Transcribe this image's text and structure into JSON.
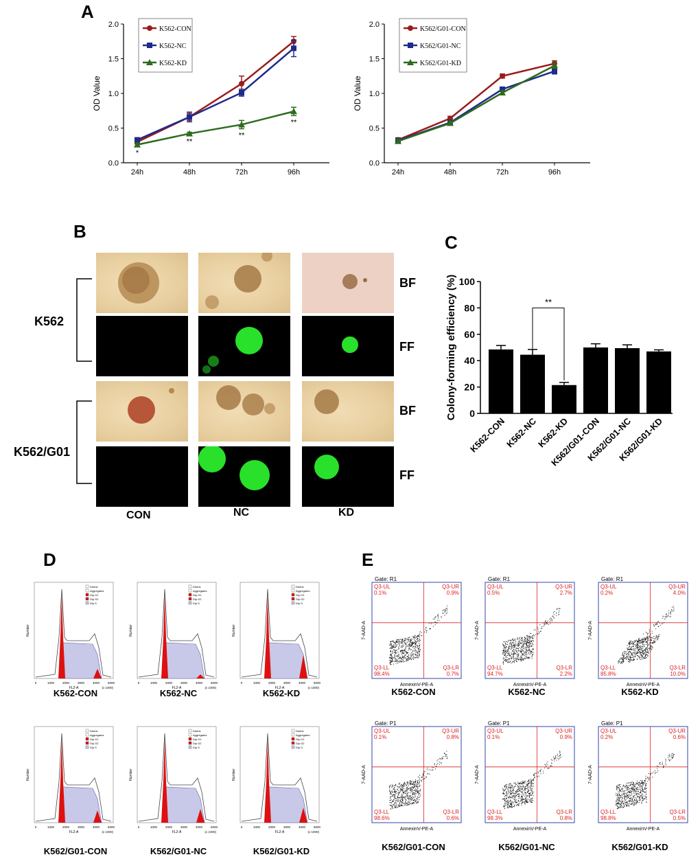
{
  "panels": {
    "A": "A",
    "B": "B",
    "C": "C",
    "D": "D",
    "E": "E"
  },
  "chart_data": [
    {
      "type": "line",
      "ylabel": "OD Value",
      "categories": [
        "24h",
        "48h",
        "72h",
        "96h"
      ],
      "ylim": [
        0,
        2.0
      ],
      "yticks": [
        "0.0",
        "0.5",
        "1.0",
        "1.5",
        "2.0"
      ],
      "series": [
        {
          "name": "K562-CON",
          "color": "#9b1c1c",
          "marker": "circle",
          "values": [
            0.3,
            0.66,
            1.14,
            1.75
          ],
          "err": [
            0.03,
            0.05,
            0.11,
            0.07
          ]
        },
        {
          "name": "K562-NC",
          "color": "#1f2a8c",
          "marker": "square",
          "values": [
            0.33,
            0.66,
            1.01,
            1.65
          ],
          "err": [
            0.03,
            0.07,
            0.05,
            0.12
          ]
        },
        {
          "name": "K562-KD",
          "color": "#2e6b1d",
          "marker": "triangle",
          "values": [
            0.26,
            0.42,
            0.55,
            0.74
          ],
          "err": [
            0.02,
            0.02,
            0.06,
            0.06
          ]
        }
      ],
      "annotations": [
        "*",
        "**",
        "**",
        "**"
      ]
    },
    {
      "type": "line",
      "ylabel": "OD Value",
      "categories": [
        "24h",
        "48h",
        "72h",
        "96h"
      ],
      "ylim": [
        0,
        2.0
      ],
      "yticks": [
        "0.0",
        "0.5",
        "1.0",
        "1.5",
        "2.0"
      ],
      "series": [
        {
          "name": "K562/G01-CON",
          "color": "#9b1c1c",
          "marker": "circle",
          "values": [
            0.33,
            0.64,
            1.25,
            1.43
          ],
          "err": [
            0.03,
            0.03,
            0.03,
            0.04
          ]
        },
        {
          "name": "K562/G01-NC",
          "color": "#1f2a8c",
          "marker": "square",
          "values": [
            0.32,
            0.58,
            1.06,
            1.32
          ],
          "err": [
            0.03,
            0.03,
            0.03,
            0.04
          ]
        },
        {
          "name": "K562/G01-KD",
          "color": "#2e6b1d",
          "marker": "triangle",
          "values": [
            0.31,
            0.57,
            1.01,
            1.4
          ],
          "err": [
            0.03,
            0.03,
            0.03,
            0.04
          ]
        }
      ]
    },
    {
      "type": "bar",
      "ylabel": "Colony-forming efficiency (%)",
      "categories": [
        "K562-CON",
        "K562-NC",
        "K562-KD",
        "K562/G01-CON",
        "K562/G01-NC",
        "K562/G01-KD"
      ],
      "values": [
        48.5,
        44.5,
        21.5,
        50.0,
        49.5,
        47.0
      ],
      "err": [
        3.0,
        4.0,
        2.0,
        2.8,
        2.5,
        1.2
      ],
      "ylim": [
        0,
        100
      ],
      "yticks": [
        "0",
        "20",
        "40",
        "60",
        "80",
        "100"
      ],
      "significance": {
        "from": "K562-NC",
        "to": "K562-KD",
        "label": "**"
      }
    }
  ],
  "panelB": {
    "rows": [
      "K562",
      "K562/G01"
    ],
    "channels": [
      "BF",
      "FF"
    ],
    "columns": [
      "CON",
      "NC",
      "KD"
    ]
  },
  "panelD": {
    "captions": [
      "K562-CON",
      "K562-NC",
      "K562-KD",
      "K562/G01-CON",
      "K562/G01-NC",
      "K562/G01-KD"
    ],
    "legend": [
      "Debris",
      "Aggregates",
      "Dip G1",
      "Dip G2",
      "Dip S"
    ],
    "xlabel": "FL2-A",
    "ylabel": "Number",
    "xunit": "(x 1000)",
    "xticks": [
      "0",
      "1000",
      "2000",
      "3000",
      "4000",
      "5000"
    ]
  },
  "panelE": {
    "xlabel": "AnnexinV-PE-A",
    "ylabel": "7-AAD-A",
    "plots": [
      {
        "caption": "K562-CON",
        "gate": "Gate: R1",
        "UL": "0.1%",
        "UR": "0.9%",
        "LL": "98.4%",
        "LR": "0.7%"
      },
      {
        "caption": "K562-NC",
        "gate": "Gate: R1",
        "UL": "0.5%",
        "UR": "2.7%",
        "LL": "94.7%",
        "LR": "2.2%"
      },
      {
        "caption": "K562-KD",
        "gate": "Gate: R1",
        "UL": "0.2%",
        "UR": "4.0%",
        "LL": "85.8%",
        "LR": "10.0%"
      },
      {
        "caption": "K562/G01-CON",
        "gate": "Gate: P1",
        "UL": "0.1%",
        "UR": "0.8%",
        "LL": "98.6%",
        "LR": "0.6%"
      },
      {
        "caption": "K562/G01-NC",
        "gate": "Gate: P1",
        "UL": "0.1%",
        "UR": "0.9%",
        "LL": "98.3%",
        "LR": "0.8%"
      },
      {
        "caption": "K562/G01-KD",
        "gate": "Gate: P1",
        "UL": "0.2%",
        "UR": "0.6%",
        "LL": "98.8%",
        "LR": "0.5%"
      }
    ],
    "quad": {
      "UL": "Q3-UL",
      "UR": "Q3-UR",
      "LL": "Q3-LL",
      "LR": "Q3-LR"
    }
  }
}
